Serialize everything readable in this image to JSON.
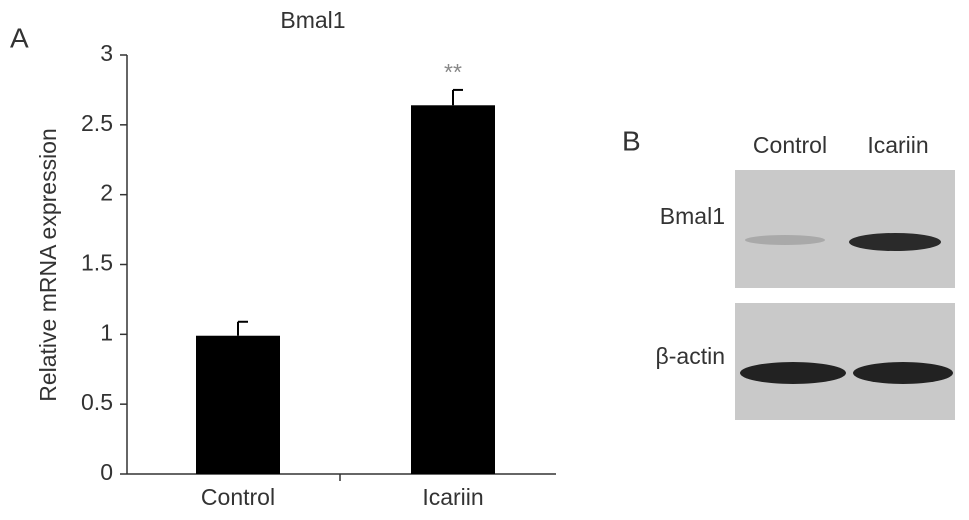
{
  "chart_data": {
    "type": "bar",
    "panel_label": "A",
    "title": "Bmal1",
    "y_label": "Relative mRNA expression",
    "categories": [
      "Control",
      "Icariin"
    ],
    "values": [
      0.99,
      2.64
    ],
    "errors": [
      0.1,
      0.11
    ],
    "significance": [
      null,
      "**"
    ],
    "color": "#000000",
    "ylim": [
      0,
      3
    ],
    "yticks": [
      0,
      0.5,
      1,
      1.5,
      2,
      2.5,
      3
    ]
  },
  "blot": {
    "panel_label": "B",
    "lanes": [
      "Control",
      "Icariin"
    ],
    "rows": [
      "Bmal1",
      "β-actin"
    ]
  }
}
